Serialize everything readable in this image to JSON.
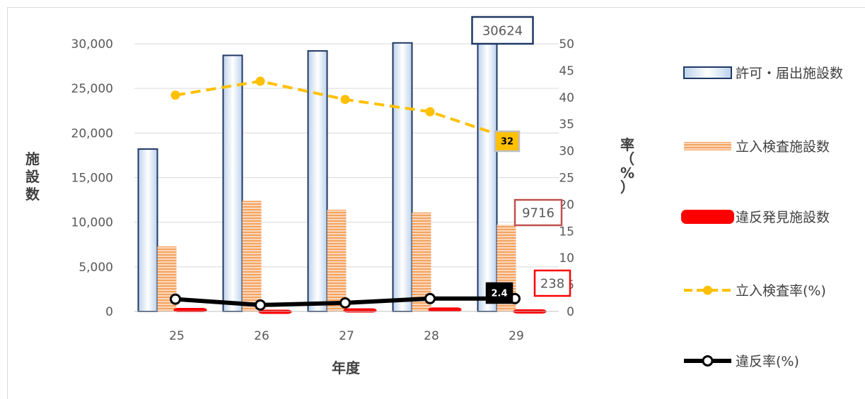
{
  "chart_data": {
    "type": "bar",
    "categories": [
      "25",
      "26",
      "27",
      "28",
      "29"
    ],
    "xlabel": "年度",
    "ylabel": "施設数",
    "y2label": "率（%）",
    "ylim": [
      0,
      30000
    ],
    "y2lim": [
      0,
      50
    ],
    "yticks": [
      "0",
      "5,000",
      "10,000",
      "15,000",
      "20,000",
      "25,000",
      "30,000"
    ],
    "y2ticks": [
      "0",
      "5",
      "10",
      "15",
      "20",
      "25",
      "30",
      "35",
      "40",
      "45",
      "50"
    ],
    "grid": true,
    "legend_position": "right",
    "series": [
      {
        "name": "許可・届出施設数",
        "type": "bar",
        "axis": "left",
        "color": "#dbe7f5",
        "values": [
          18200,
          28700,
          29200,
          30100,
          30624
        ]
      },
      {
        "name": "立入検査施設数",
        "type": "bar",
        "axis": "left",
        "color": "#f4a460",
        "values": [
          7300,
          12400,
          11400,
          11100,
          9716
        ]
      },
      {
        "name": "違反発見施設数",
        "type": "bar",
        "axis": "left",
        "color": "#ff0000",
        "values": [
          400,
          200,
          350,
          450,
          238
        ]
      },
      {
        "name": "立入検査率(%)",
        "type": "line",
        "axis": "right",
        "color": "#ffc000",
        "values": [
          40.4,
          43.0,
          39.6,
          37.3,
          32
        ]
      },
      {
        "name": "違反率(%)",
        "type": "line",
        "axis": "right",
        "color": "#000000",
        "values": [
          2.3,
          1.2,
          1.6,
          2.4,
          2.4
        ]
      }
    ],
    "callouts": [
      "30624",
      "9716",
      "238",
      "32",
      "2.4"
    ]
  }
}
